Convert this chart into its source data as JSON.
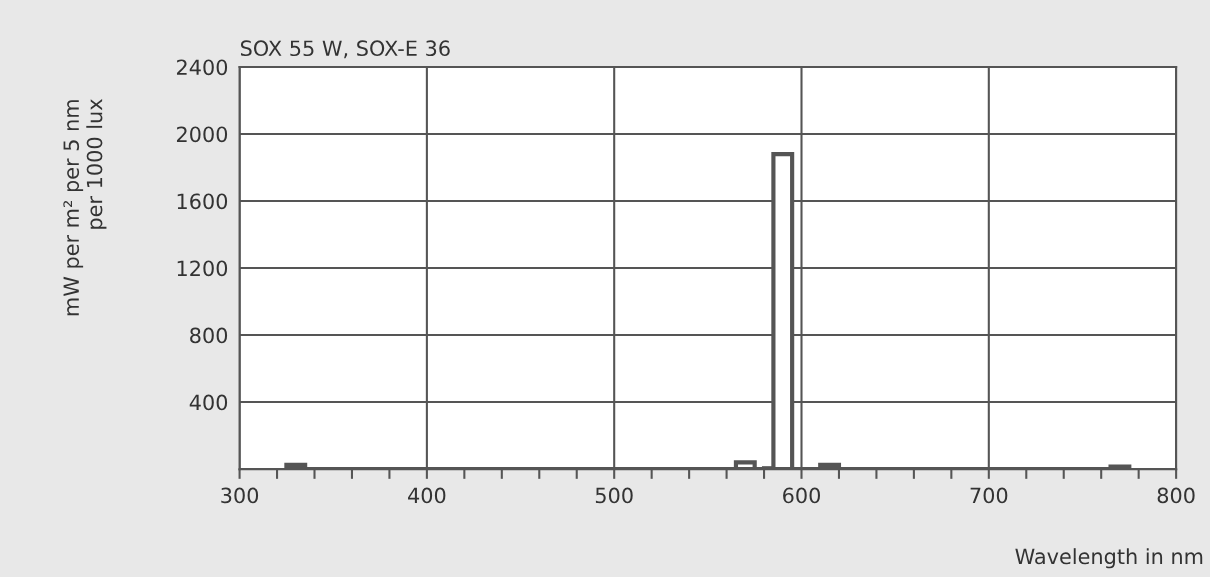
{
  "chart_data": {
    "type": "histogram",
    "title": "SOX 55 W, SOX-E 36",
    "xlabel": "Wavelength in nm",
    "ylabel": "mW per m² per 5 nm\nper 1000 lux",
    "bins": [
      325,
      335,
      565,
      575,
      580,
      585,
      595,
      610,
      620,
      765,
      775
    ],
    "values": [
      25,
      0,
      40,
      0,
      5,
      1880,
      0,
      25,
      0,
      15
    ],
    "color": "#555555",
    "xlim": [
      300,
      800
    ],
    "xticks": [
      300,
      {
        "value": 320,
        "label": null
      },
      {
        "value": 340,
        "label": null
      },
      {
        "value": 360,
        "label": null
      },
      {
        "value": 380,
        "label": null
      },
      400,
      {
        "value": 420,
        "label": null
      },
      {
        "value": 440,
        "label": null
      },
      {
        "value": 460,
        "label": null
      },
      {
        "value": 480,
        "label": null
      },
      500,
      {
        "value": 520,
        "label": null
      },
      {
        "value": 540,
        "label": null
      },
      {
        "value": 560,
        "label": null
      },
      {
        "value": 580,
        "label": null
      },
      600,
      {
        "value": 620,
        "label": null
      },
      {
        "value": 640,
        "label": null
      },
      {
        "value": 660,
        "label": null
      },
      {
        "value": 680,
        "label": null
      },
      700,
      {
        "value": 720,
        "label": null
      },
      {
        "value": 740,
        "label": null
      },
      {
        "value": 760,
        "label": null
      },
      {
        "value": 780,
        "label": null
      },
      800
    ],
    "ylim": [
      0,
      2400
    ],
    "yticks": [
      400,
      800,
      1200,
      1600,
      2000,
      2400
    ],
    "grid": true
  }
}
